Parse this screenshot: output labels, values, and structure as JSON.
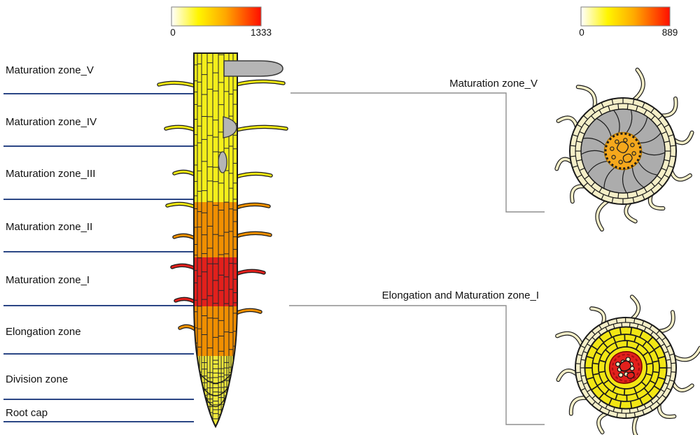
{
  "colorbars": {
    "left": {
      "min": "0",
      "max": "1333"
    },
    "right": {
      "min": "0",
      "max": "889"
    }
  },
  "left_zones": [
    {
      "label": "Maturation zone_V"
    },
    {
      "label": "Maturation zone_IV"
    },
    {
      "label": "Maturation zone_III"
    },
    {
      "label": "Maturation zone_II"
    },
    {
      "label": "Maturation zone_I"
    },
    {
      "label": "Elongation zone"
    },
    {
      "label": "Division zone"
    },
    {
      "label": "Root cap"
    }
  ],
  "sections": {
    "top": {
      "label": "Maturation zone_V"
    },
    "bottom": {
      "label": "Elongation and Maturation zone_I"
    }
  },
  "colors": {
    "separator_line": "#2B4685",
    "leader_line": "#8F8F8F",
    "root_yellow": "#F4EF1B",
    "root_orange": "#F08F00",
    "root_red": "#E2201C",
    "division_yellow": "#F0E93B",
    "primordium_gray": "#B5B5B5",
    "epidermis_cream": "#F5EFC8",
    "cortex_gray": "#ACACAC",
    "stele_orange": "#F5A81C",
    "cortex_yellow": "#F2E614",
    "heat_gradient": [
      "#FFFFFF",
      "#FFF500",
      "#FFA800",
      "#FF0E00"
    ]
  }
}
